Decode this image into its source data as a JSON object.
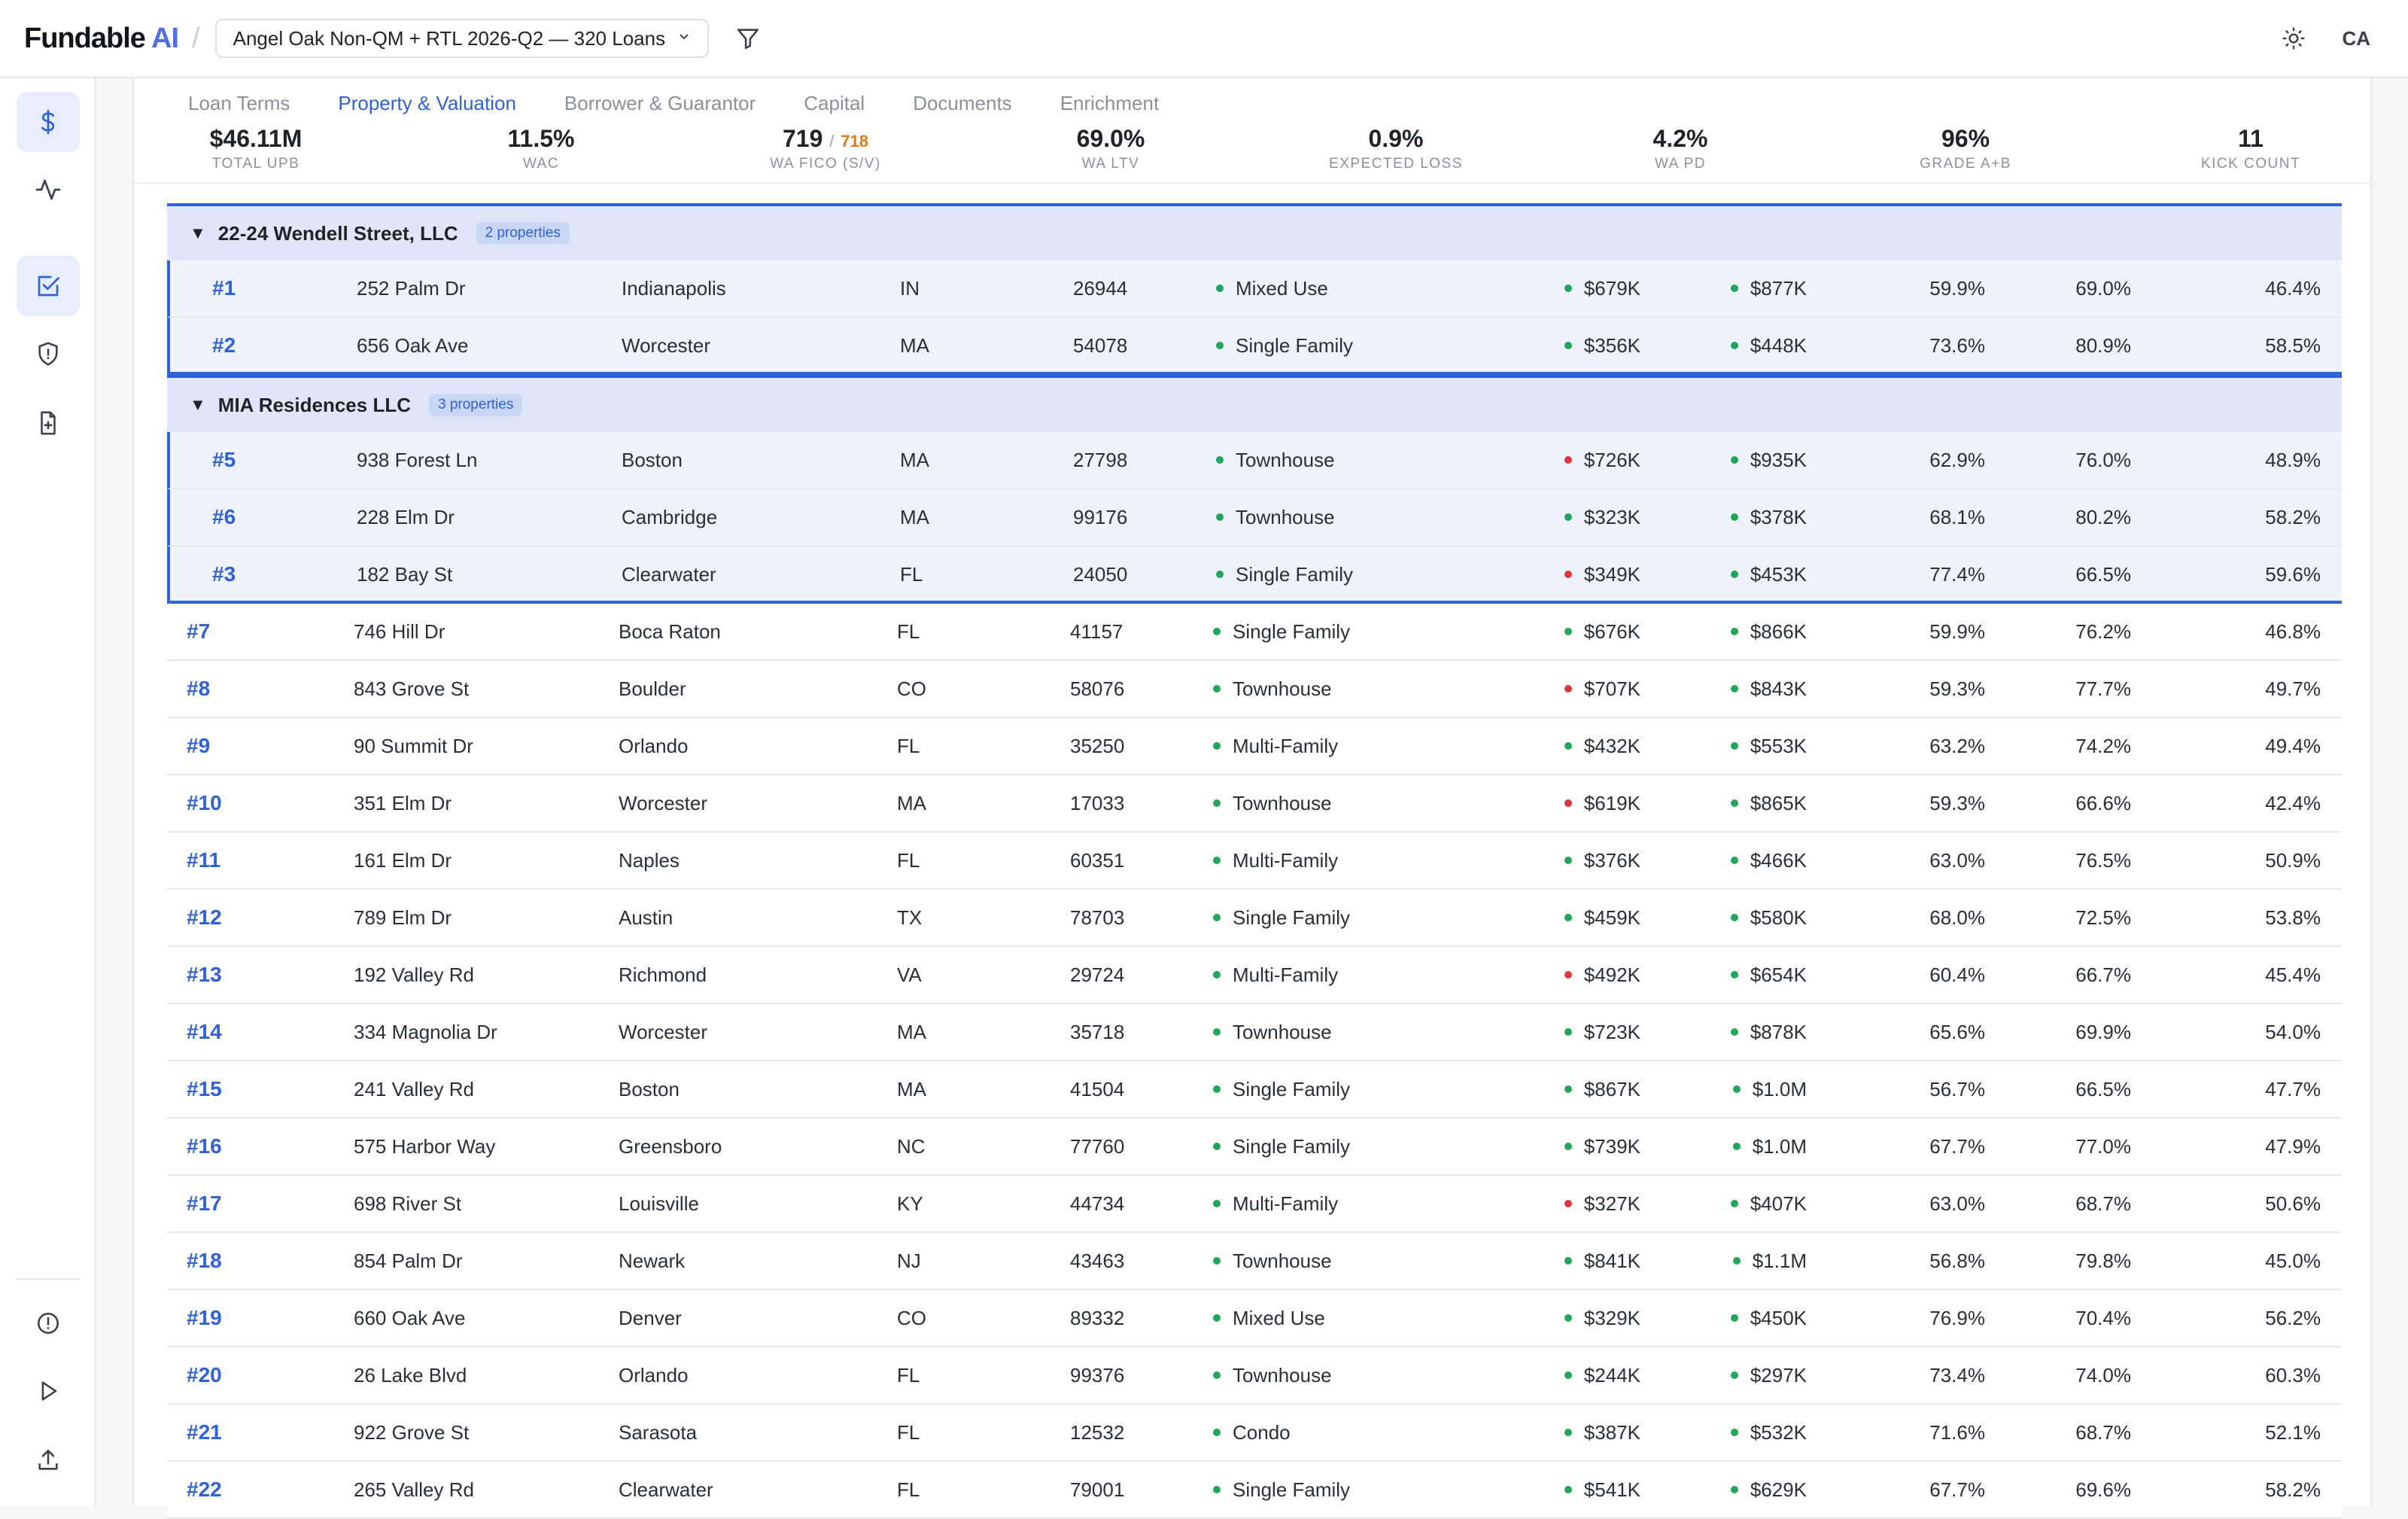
{
  "brand": {
    "name": "Fundable",
    "ai": "AI"
  },
  "dataset": {
    "label": "Angel Oak Non-QM + RTL 2026-Q2 — 320 Loans"
  },
  "user": {
    "initials": "CA"
  },
  "colors": {
    "accent": "#2f62d8",
    "good": "#20a55a",
    "bad": "#e0363a",
    "warn": "#e07a16"
  },
  "tabs": [
    {
      "label": "Loan Terms",
      "active": false
    },
    {
      "label": "Property & Valuation",
      "active": true
    },
    {
      "label": "Borrower & Guarantor",
      "active": false
    },
    {
      "label": "Capital",
      "active": false
    },
    {
      "label": "Documents",
      "active": false
    },
    {
      "label": "Enrichment",
      "active": false
    }
  ],
  "kpis": [
    {
      "value": "$46.11M",
      "label": "TOTAL UPB"
    },
    {
      "value": "11.5%",
      "label": "WAC"
    },
    {
      "value": "719",
      "sep": "/",
      "sub": "718",
      "label": "WA FICO (S/V)"
    },
    {
      "value": "69.0%",
      "label": "WA LTV"
    },
    {
      "value": "0.9%",
      "label": "EXPECTED LOSS"
    },
    {
      "value": "4.2%",
      "label": "WA PD"
    },
    {
      "value": "96%",
      "label": "GRADE A+B"
    },
    {
      "value": "11",
      "label": "KICK COUNT"
    }
  ],
  "groups": [
    {
      "name": "22-24 Wendell Street, LLC",
      "badge": "2 properties",
      "rows": [
        {
          "id": "#1",
          "address": "252 Palm Dr",
          "city": "Indianapolis",
          "state": "IN",
          "zip": "26944",
          "type": "Mixed Use",
          "v1": "$679K",
          "v1s": "green",
          "v2": "$877K",
          "v2s": "green",
          "p1": "59.9%",
          "p2": "69.0%",
          "p3": "46.4%"
        },
        {
          "id": "#2",
          "address": "656 Oak Ave",
          "city": "Worcester",
          "state": "MA",
          "zip": "54078",
          "type": "Single Family",
          "v1": "$356K",
          "v1s": "green",
          "v2": "$448K",
          "v2s": "green",
          "p1": "73.6%",
          "p2": "80.9%",
          "p3": "58.5%"
        }
      ]
    },
    {
      "name": "MIA Residences LLC",
      "badge": "3 properties",
      "rows": [
        {
          "id": "#5",
          "address": "938 Forest Ln",
          "city": "Boston",
          "state": "MA",
          "zip": "27798",
          "type": "Townhouse",
          "v1": "$726K",
          "v1s": "red",
          "v2": "$935K",
          "v2s": "green",
          "p1": "62.9%",
          "p2": "76.0%",
          "p3": "48.9%"
        },
        {
          "id": "#6",
          "address": "228 Elm Dr",
          "city": "Cambridge",
          "state": "MA",
          "zip": "99176",
          "type": "Townhouse",
          "v1": "$323K",
          "v1s": "green",
          "v2": "$378K",
          "v2s": "green",
          "p1": "68.1%",
          "p2": "80.2%",
          "p3": "58.2%"
        },
        {
          "id": "#3",
          "address": "182 Bay St",
          "city": "Clearwater",
          "state": "FL",
          "zip": "24050",
          "type": "Single Family",
          "v1": "$349K",
          "v1s": "red",
          "v2": "$453K",
          "v2s": "green",
          "p1": "77.4%",
          "p2": "66.5%",
          "p3": "59.6%"
        }
      ]
    }
  ],
  "rows": [
    {
      "id": "#7",
      "address": "746 Hill Dr",
      "city": "Boca Raton",
      "state": "FL",
      "zip": "41157",
      "type": "Single Family",
      "v1": "$676K",
      "v1s": "green",
      "v2": "$866K",
      "v2s": "green",
      "p1": "59.9%",
      "p2": "76.2%",
      "p3": "46.8%"
    },
    {
      "id": "#8",
      "address": "843 Grove St",
      "city": "Boulder",
      "state": "CO",
      "zip": "58076",
      "type": "Townhouse",
      "v1": "$707K",
      "v1s": "red",
      "v2": "$843K",
      "v2s": "green",
      "p1": "59.3%",
      "p2": "77.7%",
      "p3": "49.7%"
    },
    {
      "id": "#9",
      "address": "90 Summit Dr",
      "city": "Orlando",
      "state": "FL",
      "zip": "35250",
      "type": "Multi-Family",
      "v1": "$432K",
      "v1s": "green",
      "v2": "$553K",
      "v2s": "green",
      "p1": "63.2%",
      "p2": "74.2%",
      "p3": "49.4%"
    },
    {
      "id": "#10",
      "address": "351 Elm Dr",
      "city": "Worcester",
      "state": "MA",
      "zip": "17033",
      "type": "Townhouse",
      "v1": "$619K",
      "v1s": "red",
      "v2": "$865K",
      "v2s": "green",
      "p1": "59.3%",
      "p2": "66.6%",
      "p3": "42.4%"
    },
    {
      "id": "#11",
      "address": "161 Elm Dr",
      "city": "Naples",
      "state": "FL",
      "zip": "60351",
      "type": "Multi-Family",
      "v1": "$376K",
      "v1s": "green",
      "v2": "$466K",
      "v2s": "green",
      "p1": "63.0%",
      "p2": "76.5%",
      "p3": "50.9%"
    },
    {
      "id": "#12",
      "address": "789 Elm Dr",
      "city": "Austin",
      "state": "TX",
      "zip": "78703",
      "type": "Single Family",
      "v1": "$459K",
      "v1s": "green",
      "v2": "$580K",
      "v2s": "green",
      "p1": "68.0%",
      "p2": "72.5%",
      "p3": "53.8%"
    },
    {
      "id": "#13",
      "address": "192 Valley Rd",
      "city": "Richmond",
      "state": "VA",
      "zip": "29724",
      "type": "Multi-Family",
      "v1": "$492K",
      "v1s": "red",
      "v2": "$654K",
      "v2s": "green",
      "p1": "60.4%",
      "p2": "66.7%",
      "p3": "45.4%"
    },
    {
      "id": "#14",
      "address": "334 Magnolia Dr",
      "city": "Worcester",
      "state": "MA",
      "zip": "35718",
      "type": "Townhouse",
      "v1": "$723K",
      "v1s": "green",
      "v2": "$878K",
      "v2s": "green",
      "p1": "65.6%",
      "p2": "69.9%",
      "p3": "54.0%"
    },
    {
      "id": "#15",
      "address": "241 Valley Rd",
      "city": "Boston",
      "state": "MA",
      "zip": "41504",
      "type": "Single Family",
      "v1": "$867K",
      "v1s": "green",
      "v2": "$1.0M",
      "v2s": "green",
      "p1": "56.7%",
      "p2": "66.5%",
      "p3": "47.7%"
    },
    {
      "id": "#16",
      "address": "575 Harbor Way",
      "city": "Greensboro",
      "state": "NC",
      "zip": "77760",
      "type": "Single Family",
      "v1": "$739K",
      "v1s": "green",
      "v2": "$1.0M",
      "v2s": "green",
      "p1": "67.7%",
      "p2": "77.0%",
      "p3": "47.9%"
    },
    {
      "id": "#17",
      "address": "698 River St",
      "city": "Louisville",
      "state": "KY",
      "zip": "44734",
      "type": "Multi-Family",
      "v1": "$327K",
      "v1s": "red",
      "v2": "$407K",
      "v2s": "green",
      "p1": "63.0%",
      "p2": "68.7%",
      "p3": "50.6%"
    },
    {
      "id": "#18",
      "address": "854 Palm Dr",
      "city": "Newark",
      "state": "NJ",
      "zip": "43463",
      "type": "Townhouse",
      "v1": "$841K",
      "v1s": "green",
      "v2": "$1.1M",
      "v2s": "green",
      "p1": "56.8%",
      "p2": "79.8%",
      "p3": "45.0%"
    },
    {
      "id": "#19",
      "address": "660 Oak Ave",
      "city": "Denver",
      "state": "CO",
      "zip": "89332",
      "type": "Mixed Use",
      "v1": "$329K",
      "v1s": "green",
      "v2": "$450K",
      "v2s": "green",
      "p1": "76.9%",
      "p2": "70.4%",
      "p3": "56.2%"
    },
    {
      "id": "#20",
      "address": "26 Lake Blvd",
      "city": "Orlando",
      "state": "FL",
      "zip": "99376",
      "type": "Townhouse",
      "v1": "$244K",
      "v1s": "green",
      "v2": "$297K",
      "v2s": "green",
      "p1": "73.4%",
      "p2": "74.0%",
      "p3": "60.3%"
    },
    {
      "id": "#21",
      "address": "922 Grove St",
      "city": "Sarasota",
      "state": "FL",
      "zip": "12532",
      "type": "Condo",
      "v1": "$387K",
      "v1s": "green",
      "v2": "$532K",
      "v2s": "green",
      "p1": "71.6%",
      "p2": "68.7%",
      "p3": "52.1%"
    },
    {
      "id": "#22",
      "address": "265 Valley Rd",
      "city": "Clearwater",
      "state": "FL",
      "zip": "79001",
      "type": "Single Family",
      "v1": "$541K",
      "v1s": "green",
      "v2": "$629K",
      "v2s": "green",
      "p1": "67.7%",
      "p2": "69.6%",
      "p3": "58.2%"
    }
  ]
}
